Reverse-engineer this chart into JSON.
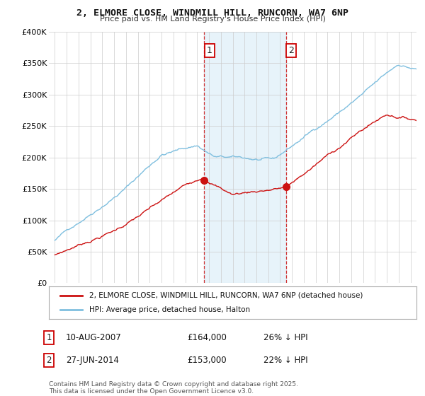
{
  "title1": "2, ELMORE CLOSE, WINDMILL HILL, RUNCORN, WA7 6NP",
  "title2": "Price paid vs. HM Land Registry's House Price Index (HPI)",
  "legend1": "2, ELMORE CLOSE, WINDMILL HILL, RUNCORN, WA7 6NP (detached house)",
  "legend2": "HPI: Average price, detached house, Halton",
  "footer": "Contains HM Land Registry data © Crown copyright and database right 2025.\nThis data is licensed under the Open Government Licence v3.0.",
  "sale1_label": "1",
  "sale1_date": "10-AUG-2007",
  "sale1_price": "£164,000",
  "sale1_hpi": "26% ↓ HPI",
  "sale2_label": "2",
  "sale2_date": "27-JUN-2014",
  "sale2_price": "£153,000",
  "sale2_hpi": "22% ↓ HPI",
  "sale1_x": 2007.61,
  "sale1_y": 164000,
  "sale2_x": 2014.49,
  "sale2_y": 153000,
  "vline1_x": 2007.61,
  "vline2_x": 2014.49,
  "ylim": [
    0,
    400000
  ],
  "xlim": [
    1994.5,
    2025.5
  ],
  "yticks": [
    0,
    50000,
    100000,
    150000,
    200000,
    250000,
    300000,
    350000,
    400000
  ],
  "ytick_labels": [
    "£0",
    "£50K",
    "£100K",
    "£150K",
    "£200K",
    "£250K",
    "£300K",
    "£350K",
    "£400K"
  ],
  "xticks": [
    1995,
    1996,
    1997,
    1998,
    1999,
    2000,
    2001,
    2002,
    2003,
    2004,
    2005,
    2006,
    2007,
    2008,
    2009,
    2010,
    2011,
    2012,
    2013,
    2014,
    2015,
    2016,
    2017,
    2018,
    2019,
    2020,
    2021,
    2022,
    2023,
    2024,
    2025
  ],
  "hpi_color": "#7fbfdf",
  "property_color": "#cc1111",
  "vline_color": "#cc1111",
  "bg_span_color": "#ddeef8",
  "plot_bg": "#ffffff",
  "grid_color": "#cccccc"
}
